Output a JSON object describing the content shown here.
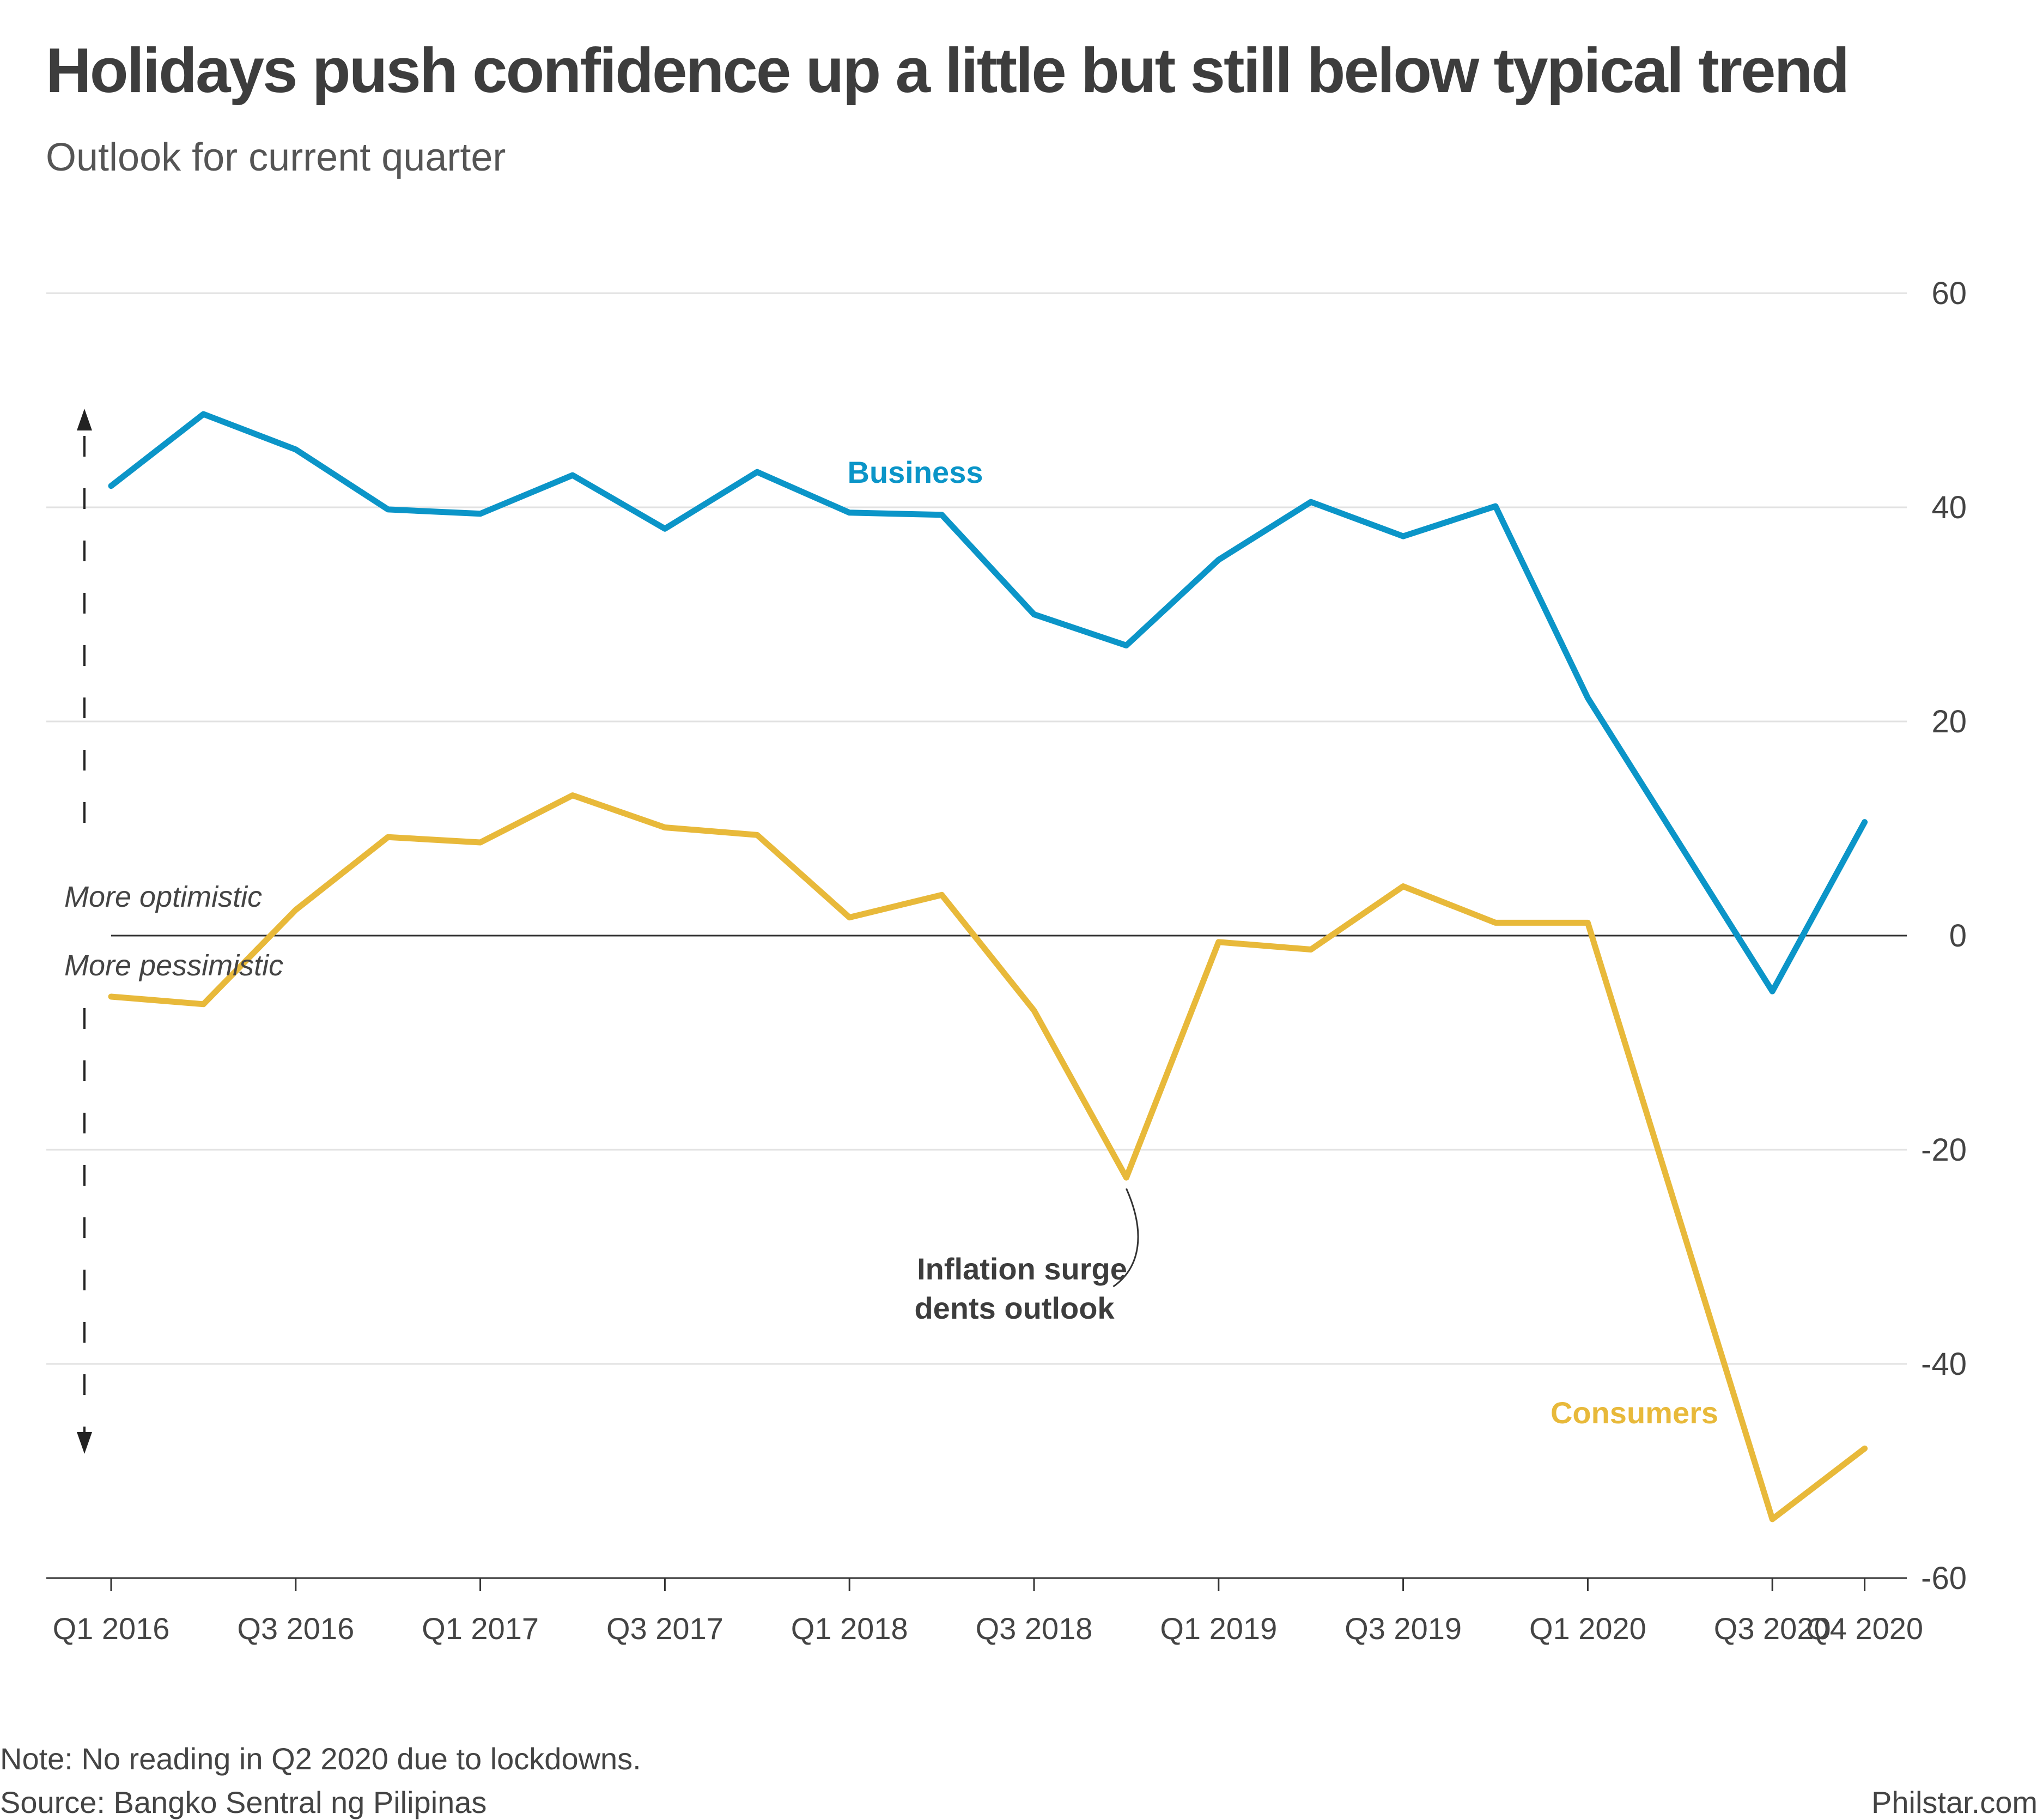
{
  "title": "Holidays push confidence up a little but still below typical trend",
  "subtitle": "Outlook for current quarter",
  "note": "Note: No reading in Q2 2020 due to lockdowns.",
  "source": "Source: Bangko Sentral ng Pilipinas",
  "brand": "Philstar.com",
  "chart_data": {
    "type": "line",
    "x": [
      "Q1 2016",
      "Q2 2016",
      "Q3 2016",
      "Q4 2016",
      "Q1 2017",
      "Q2 2017",
      "Q3 2017",
      "Q4 2017",
      "Q1 2018",
      "Q2 2018",
      "Q3 2018",
      "Q4 2018",
      "Q1 2019",
      "Q2 2019",
      "Q3 2019",
      "Q4 2019",
      "Q1 2020",
      "Q3 2020",
      "Q4 2020"
    ],
    "tick_labels": [
      "Q1 2016",
      "Q3 2016",
      "Q1 2017",
      "Q3 2017",
      "Q1 2018",
      "Q3 2018",
      "Q1 2019",
      "Q3 2019",
      "Q1 2020",
      "Q3 2020",
      "Q4 2020"
    ],
    "ylim": [
      -60,
      60
    ],
    "yticks": [
      60,
      40,
      20,
      0,
      -20,
      -40,
      -60
    ],
    "grid": true,
    "y_axis_side": "right",
    "series": [
      {
        "name": "Business",
        "color": "#0b95c8",
        "values": [
          42.0,
          48.7,
          45.4,
          39.8,
          39.4,
          43.0,
          38.0,
          43.3,
          39.5,
          39.3,
          30.0,
          27.1,
          35.1,
          40.5,
          37.3,
          40.1,
          22.2,
          -5.2,
          10.6
        ]
      },
      {
        "name": "Consumers",
        "color": "#e8b93a",
        "values": [
          -5.7,
          -6.4,
          2.4,
          9.2,
          8.7,
          13.1,
          10.1,
          9.4,
          1.7,
          3.8,
          -7.0,
          -22.6,
          -0.6,
          -1.3,
          4.6,
          1.2,
          1.2,
          -54.5,
          -47.9
        ]
      }
    ],
    "annotations": {
      "more_optimistic": "More optimistic",
      "more_pessimistic": "More pessimistic",
      "inflation_line1": "Inflation surge",
      "inflation_line2": "dents outlook"
    },
    "callout_color": "#3d3d3d"
  }
}
